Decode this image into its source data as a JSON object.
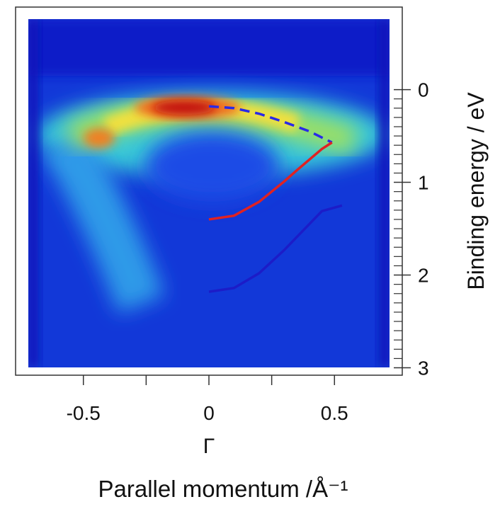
{
  "chart_data": {
    "type": "line",
    "xlabel": "Parallel momentum /Å⁻¹",
    "ylabel": "Binding energy / eV",
    "x_point_label": {
      "value": 0,
      "label": "Γ"
    },
    "xlim": [
      -0.77,
      0.77
    ],
    "ylim": [
      3.08,
      -0.89
    ],
    "xticks": [
      -0.5,
      0,
      0.5
    ],
    "xminorticks": [
      -0.25,
      0.25
    ],
    "yticks": [
      0,
      1,
      2,
      3
    ],
    "yminorticks": [
      0.1,
      0.2,
      0.3,
      0.4,
      0.5,
      0.6,
      0.7,
      0.8,
      0.9,
      1.1,
      1.2,
      1.3,
      1.4,
      1.5,
      1.6,
      1.7,
      1.8,
      1.9,
      2.1,
      2.2,
      2.3,
      2.4,
      2.5,
      2.6,
      2.7,
      2.8,
      2.9
    ],
    "series": [
      {
        "color": "#2a2ae6",
        "linestyle": "dashed",
        "x": [
          0,
          0.1,
          0.2,
          0.3,
          0.4,
          0.49
        ],
        "values": [
          0.18,
          0.2,
          0.26,
          0.35,
          0.45,
          0.57
        ]
      },
      {
        "color": "#e02222",
        "linestyle": "solid",
        "x": [
          0,
          0.1,
          0.2,
          0.3,
          0.35,
          0.45,
          0.49
        ],
        "values": [
          1.4,
          1.36,
          1.21,
          0.99,
          0.87,
          0.64,
          0.57
        ]
      },
      {
        "color": "#1c1cc8",
        "linestyle": "solid",
        "x": [
          0,
          0.1,
          0.2,
          0.3,
          0.35,
          0.45,
          0.53
        ],
        "values": [
          2.18,
          2.14,
          1.98,
          1.73,
          1.59,
          1.31,
          1.25
        ]
      }
    ]
  }
}
